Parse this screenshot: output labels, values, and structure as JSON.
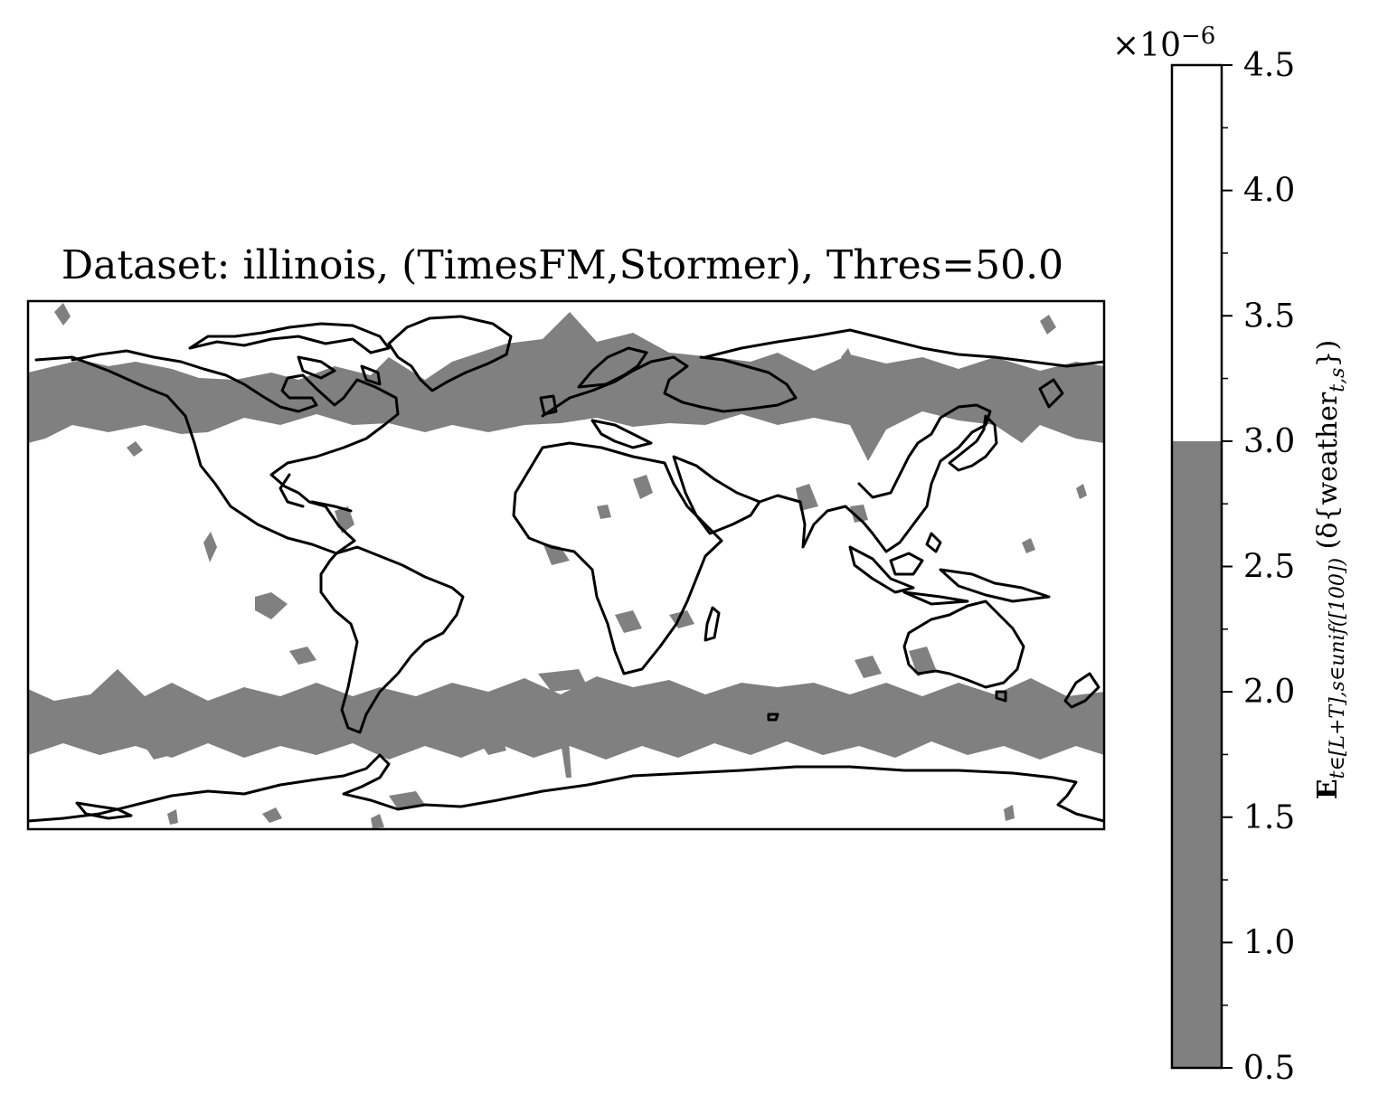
{
  "title": "Dataset: illinois, (TimesFM,Stormer), Thres=50.0",
  "colorbar": {
    "offset_base": "×10",
    "offset_exponent": "−6",
    "ticks": [
      "0.5",
      "1.0",
      "1.5",
      "2.0",
      "2.5",
      "3.0",
      "3.5",
      "4.0",
      "4.5"
    ],
    "tick_values": [
      0.5,
      1.0,
      1.5,
      2.0,
      2.5,
      3.0,
      3.5,
      4.0,
      4.5
    ],
    "range": [
      0.5,
      4.5
    ],
    "levels": [
      {
        "from": 0.5,
        "to": 3.0,
        "color": "#808080"
      },
      {
        "from": 3.0,
        "to": 4.5,
        "color": "#ffffff"
      }
    ],
    "label": {
      "main": "E",
      "subscript": "t∈[L+T],s∈unif([100])",
      "rest": " (δ{weather",
      "inner_subscript": "t,s",
      "close": "})"
    }
  },
  "map": {
    "projection": "PlateCarree",
    "extent_lon": [
      -180,
      180
    ],
    "extent_lat": [
      -90,
      90
    ],
    "fill_color": "#808080",
    "coastline_color": "#000000"
  }
}
